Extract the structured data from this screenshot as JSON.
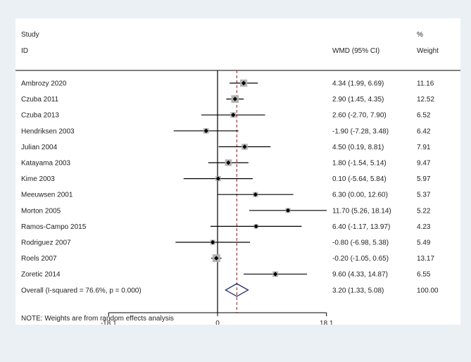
{
  "chart_data": {
    "type": "forest",
    "headers": {
      "study_line1": "Study",
      "study_line2": "ID",
      "effect": "WMD (95% CI)",
      "weight_line1": "%",
      "weight_line2": "Weight"
    },
    "studies": [
      {
        "id": "Ambrozy 2020",
        "wmd": 4.34,
        "lo": 1.99,
        "hi": 6.69,
        "ci_text": "4.34 (1.99, 6.69)",
        "weight": 11.16,
        "weight_text": "11.16"
      },
      {
        "id": "Czuba 2011",
        "wmd": 2.9,
        "lo": 1.45,
        "hi": 4.35,
        "ci_text": "2.90 (1.45, 4.35)",
        "weight": 12.52,
        "weight_text": "12.52"
      },
      {
        "id": "Czuba 2013",
        "wmd": 2.6,
        "lo": -2.7,
        "hi": 7.9,
        "ci_text": "2.60 (-2.70, 7.90)",
        "weight": 6.52,
        "weight_text": "6.52"
      },
      {
        "id": "Hendriksen 2003",
        "wmd": -1.9,
        "lo": -7.28,
        "hi": 3.48,
        "ci_text": "-1.90 (-7.28, 3.48)",
        "weight": 6.42,
        "weight_text": "6.42"
      },
      {
        "id": "Julian 2004",
        "wmd": 4.5,
        "lo": 0.19,
        "hi": 8.81,
        "ci_text": "4.50 (0.19, 8.81)",
        "weight": 7.91,
        "weight_text": "7.91"
      },
      {
        "id": "Katayama 2003",
        "wmd": 1.8,
        "lo": -1.54,
        "hi": 5.14,
        "ci_text": "1.80 (-1.54, 5.14)",
        "weight": 9.47,
        "weight_text": "9.47"
      },
      {
        "id": "Kime 2003",
        "wmd": 0.1,
        "lo": -5.64,
        "hi": 5.84,
        "ci_text": "0.10 (-5.64, 5.84)",
        "weight": 5.97,
        "weight_text": "5.97"
      },
      {
        "id": "Meeuwsen 2001",
        "wmd": 6.3,
        "lo": 0.0,
        "hi": 12.6,
        "ci_text": "6.30 (0.00, 12.60)",
        "weight": 5.37,
        "weight_text": "5.37"
      },
      {
        "id": "Morton 2005",
        "wmd": 11.7,
        "lo": 5.26,
        "hi": 18.14,
        "ci_text": "11.70 (5.26, 18.14)",
        "weight": 5.22,
        "weight_text": "5.22"
      },
      {
        "id": "Ramos-Campo 2015",
        "wmd": 6.4,
        "lo": -1.17,
        "hi": 13.97,
        "ci_text": "6.40 (-1.17, 13.97)",
        "weight": 4.23,
        "weight_text": "4.23"
      },
      {
        "id": "Rodriguez 2007",
        "wmd": -0.8,
        "lo": -6.98,
        "hi": 5.38,
        "ci_text": "-0.80 (-6.98, 5.38)",
        "weight": 5.49,
        "weight_text": "5.49"
      },
      {
        "id": "Roels 2007",
        "wmd": -0.2,
        "lo": -1.05,
        "hi": 0.65,
        "ci_text": "-0.20 (-1.05, 0.65)",
        "weight": 13.17,
        "weight_text": "13.17"
      },
      {
        "id": "Zoretic 2014",
        "wmd": 9.6,
        "lo": 4.33,
        "hi": 14.87,
        "ci_text": "9.60 (4.33, 14.87)",
        "weight": 6.55,
        "weight_text": "6.55"
      }
    ],
    "overall": {
      "label": "Overall  (I-squared = 76.6%, p = 0.000)",
      "wmd": 3.2,
      "lo": 1.33,
      "hi": 5.08,
      "ci_text": "3.20 (1.33, 5.08)",
      "weight_text": "100.00"
    },
    "note": "NOTE: Weights are from random effects analysis",
    "x_axis": {
      "ticks": [
        -18.1,
        0,
        18.1
      ],
      "tick_labels": [
        "-18.1",
        "0",
        "18.1"
      ],
      "range": [
        -18.1,
        18.1
      ]
    },
    "null_line": 0,
    "colors": {
      "line": "#000000",
      "marker_box": "#b3b3b3",
      "point": "#000000",
      "overall_diamond": "#1c2a6b",
      "dashed_line": "#8b1a1a"
    }
  }
}
